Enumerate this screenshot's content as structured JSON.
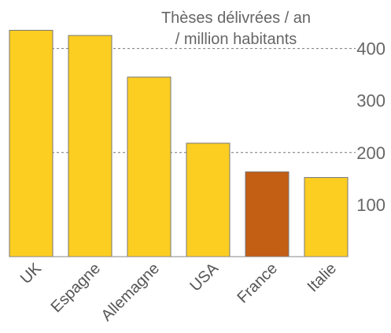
{
  "chart_data": {
    "type": "bar",
    "title_lines": [
      "Thèses délivrées / an",
      "/ million habitants"
    ],
    "categories": [
      "UK",
      "Espagne",
      "Allemagne",
      "USA",
      "France",
      "Italie"
    ],
    "values": [
      435,
      425,
      345,
      218,
      163,
      152
    ],
    "ylim": [
      0,
      450
    ],
    "yticks": [
      100,
      200,
      300,
      400
    ],
    "gridlines": [
      200,
      400
    ],
    "y_axis_side": "right",
    "colors": {
      "default": "#FCCE22",
      "highlight": "#C35E15",
      "highlight_category": "France"
    }
  }
}
